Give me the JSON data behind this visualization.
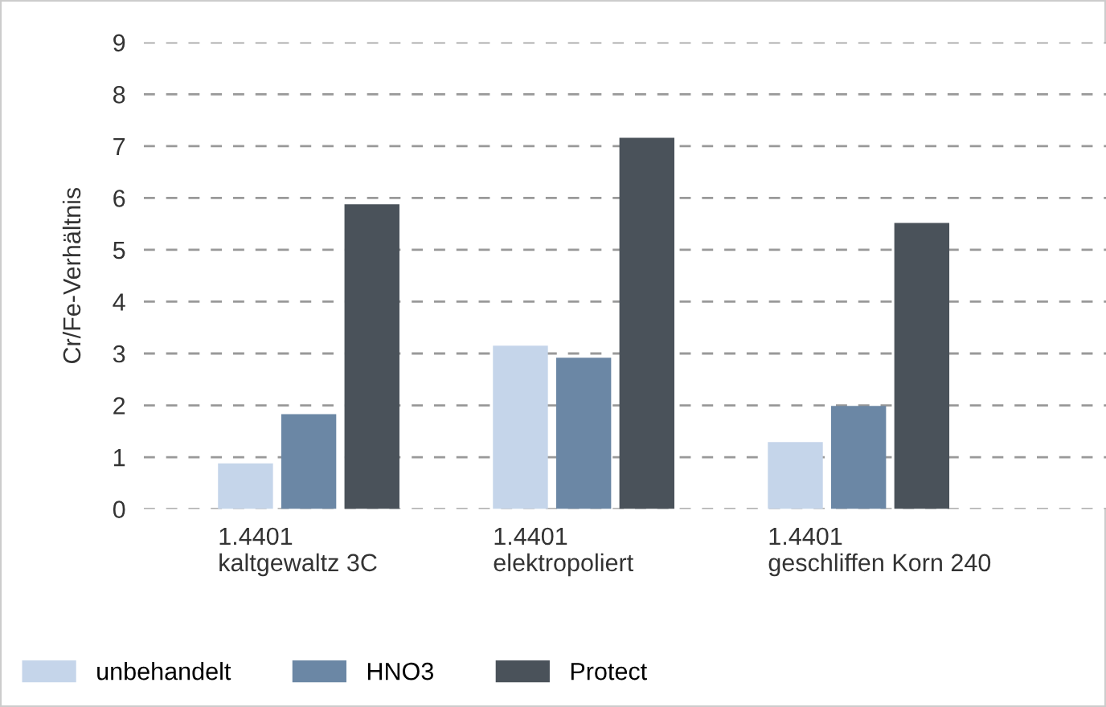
{
  "chart_data": {
    "type": "bar",
    "ylabel": "Cr/Fe-Verhältnis",
    "categories": [
      "1.4401\nkaltgewaltz 3C",
      "1.4401\nelektropoliert",
      "1.4401\ngeschliffen Korn 240"
    ],
    "series": [
      {
        "name": "unbehandelt",
        "color": "#c5d5ea",
        "values": [
          0.88,
          3.15,
          1.29
        ]
      },
      {
        "name": "HNO3",
        "color": "#6b87a5",
        "values": [
          1.83,
          2.92,
          1.99
        ]
      },
      {
        "name": "Protect",
        "color": "#4a525a",
        "values": [
          5.88,
          7.16,
          5.52
        ]
      }
    ],
    "ylim": [
      0,
      9
    ],
    "yticks": [
      0,
      1,
      2,
      3,
      4,
      5,
      6,
      7,
      8,
      9
    ],
    "grid": "y",
    "legend": "bottom left"
  }
}
